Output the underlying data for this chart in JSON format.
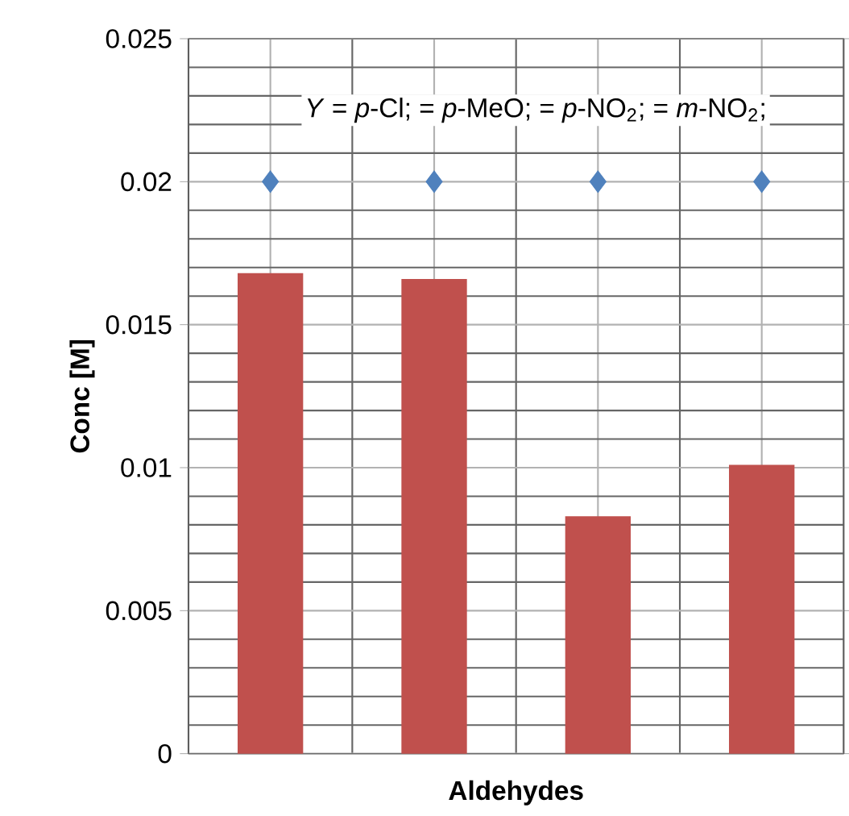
{
  "chart_data": {
    "type": "bar",
    "xlabel": "Aldehydes",
    "ylabel": "Conc [M]",
    "categories": [
      null,
      null,
      null,
      null
    ],
    "series": [
      {
        "color": "#c0504d",
        "values": [
          0.0168,
          0.0166,
          0.0083,
          0.0101
        ]
      },
      {
        "type": "scatter",
        "color": "#4f81bd",
        "marker": "diamond",
        "values": [
          0.02,
          0.02,
          0.02,
          0.02
        ]
      }
    ],
    "ylim": [
      0,
      0.025
    ],
    "yticks": [
      0,
      0.005,
      0.01,
      0.015,
      0.02,
      0.025
    ],
    "grid": true,
    "annotations": [
      "*Y* = *p*-Cl; = *p*-MeO; = *p*-NO$_{2}$; = *m*-NO$_{2}$;"
    ]
  }
}
